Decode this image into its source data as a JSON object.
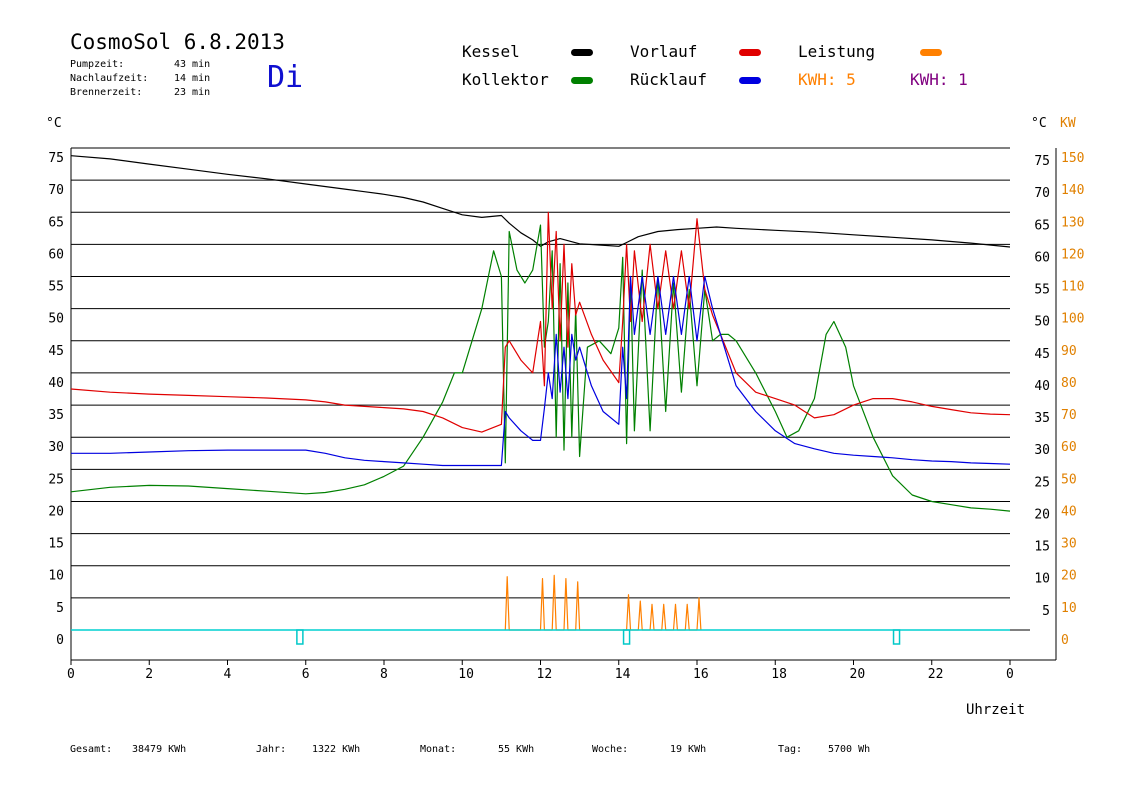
{
  "header": {
    "title": "CosmoSol 6.8.2013",
    "day": "Di",
    "stats": [
      {
        "label": "Pumpzeit:",
        "value": "43 min"
      },
      {
        "label": "Nachlaufzeit:",
        "value": "14 min"
      },
      {
        "label": "Brennerzeit:",
        "value": "23 min"
      }
    ]
  },
  "legend": {
    "kessel": {
      "label": "Kessel",
      "color": "#000000"
    },
    "kollektor": {
      "label": "Kollektor",
      "color": "#008000"
    },
    "vorlauf": {
      "label": "Vorlauf",
      "color": "#e00000"
    },
    "ruecklauf": {
      "label": "Rücklauf",
      "color": "#0000e0"
    },
    "leistung": {
      "label": "Leistung",
      "color": "#ff8000"
    },
    "kwh_orange": {
      "label": "KWH:",
      "value": "5",
      "color": "#ff8000"
    },
    "kwh_purple": {
      "label": "KWH:",
      "value": "1",
      "color": "#800080"
    }
  },
  "axes": {
    "left_unit": "°C",
    "right_unit_c": "°C",
    "right_unit_kw": "KW",
    "x_label": "Uhrzeit"
  },
  "footer": {
    "gesamt_label": "Gesamt:",
    "gesamt_value": "38479 KWh",
    "jahr_label": "Jahr:",
    "jahr_value": "1322 KWh",
    "monat_label": "Monat:",
    "monat_value": "55 KWh",
    "woche_label": "Woche:",
    "woche_value": "19 KWh",
    "tag_label": "Tag:",
    "tag_value": "5700 Wh"
  },
  "chart_data": {
    "type": "line",
    "x_unit": "hours",
    "xlim": [
      0,
      24
    ],
    "x_ticks": [
      "0",
      "2",
      "4",
      "6",
      "8",
      "10",
      "12",
      "14",
      "16",
      "18",
      "20",
      "22",
      "0"
    ],
    "ylim": [
      0,
      75
    ],
    "y_ticks_left": [
      "0",
      "5",
      "10",
      "15",
      "20",
      "25",
      "30",
      "35",
      "40",
      "45",
      "50",
      "55",
      "60",
      "65",
      "70",
      "75"
    ],
    "y_ticks_right_c": [
      "5",
      "10",
      "15",
      "20",
      "25",
      "30",
      "35",
      "40",
      "45",
      "50",
      "55",
      "60",
      "65",
      "70",
      "75"
    ],
    "y_ticks_right_kw": [
      "0",
      "10",
      "20",
      "30",
      "40",
      "50",
      "60",
      "70",
      "80",
      "90",
      "100",
      "110",
      "120",
      "130",
      "140",
      "150"
    ],
    "grid": true,
    "series": [
      {
        "name": "Kessel",
        "color": "#000000",
        "x": [
          0,
          1,
          2,
          3,
          4,
          5,
          6,
          7,
          7.5,
          8,
          8.5,
          9,
          9.5,
          10,
          10.5,
          11,
          11.2,
          11.5,
          11.8,
          12,
          12.2,
          12.5,
          13,
          13.5,
          14,
          14.2,
          14.5,
          15,
          15.5,
          16,
          16.5,
          17,
          18,
          19,
          20,
          21,
          22,
          23,
          24
        ],
        "y": [
          73.8,
          73.3,
          72.5,
          71.7,
          70.9,
          70.2,
          69.4,
          68.6,
          68.2,
          67.8,
          67.3,
          66.6,
          65.6,
          64.6,
          64.2,
          64.5,
          63.3,
          61.8,
          60.7,
          59.7,
          60.4,
          60.9,
          60.1,
          59.9,
          59.7,
          60.3,
          61.2,
          62.0,
          62.3,
          62.5,
          62.7,
          62.5,
          62.2,
          61.9,
          61.5,
          61.1,
          60.7,
          60.2,
          59.6
        ]
      },
      {
        "name": "Kollektor",
        "color": "#008000",
        "x": [
          0,
          1,
          2,
          3,
          4,
          5,
          6,
          6.5,
          7,
          7.5,
          8,
          8.5,
          9,
          9.5,
          9.8,
          10,
          10.5,
          10.8,
          11,
          11.1,
          11.2,
          11.4,
          11.6,
          11.8,
          12,
          12.1,
          12.2,
          12.3,
          12.4,
          12.5,
          12.6,
          12.7,
          12.8,
          12.9,
          13,
          13.2,
          13.5,
          13.8,
          14,
          14.1,
          14.2,
          14.3,
          14.4,
          14.6,
          14.8,
          15,
          15.2,
          15.4,
          15.6,
          15.8,
          16,
          16.2,
          16.4,
          16.6,
          16.8,
          17,
          17.5,
          18,
          18.3,
          18.6,
          19,
          19.3,
          19.5,
          19.8,
          20,
          20.5,
          21,
          21.5,
          22,
          22.5,
          23,
          23.5,
          24
        ],
        "y": [
          21.5,
          22.2,
          22.5,
          22.4,
          22.0,
          21.6,
          21.2,
          21.4,
          21.9,
          22.6,
          23.9,
          25.5,
          30.0,
          35.5,
          40.0,
          40.0,
          50.0,
          59.0,
          55.0,
          26.0,
          62.0,
          56.0,
          54.0,
          56.0,
          63.0,
          44.0,
          48.0,
          59.0,
          30.0,
          57.0,
          28.0,
          54.0,
          30.0,
          50.0,
          27.0,
          44.0,
          45.0,
          43.0,
          47.0,
          58.0,
          29.0,
          55.0,
          31.0,
          56.0,
          31.0,
          55.0,
          34.0,
          54.0,
          37.0,
          53.0,
          38.0,
          53.0,
          45.0,
          46.0,
          46.0,
          45.0,
          40.0,
          34.0,
          30.0,
          31.0,
          36.0,
          46.0,
          48.0,
          44.0,
          38.0,
          30.0,
          24.0,
          21.0,
          20.0,
          19.5,
          19.0,
          18.8,
          18.5
        ]
      },
      {
        "name": "Vorlauf",
        "color": "#e00000",
        "x": [
          0,
          1,
          2,
          3,
          4,
          5,
          6,
          6.5,
          7,
          7.5,
          8,
          8.5,
          9,
          9.5,
          10,
          10.5,
          11,
          11.1,
          11.2,
          11.5,
          11.8,
          12,
          12.1,
          12.2,
          12.3,
          12.4,
          12.5,
          12.6,
          12.7,
          12.8,
          12.9,
          13,
          13.3,
          13.6,
          14,
          14.1,
          14.2,
          14.3,
          14.4,
          14.6,
          14.8,
          15,
          15.2,
          15.4,
          15.6,
          15.8,
          16,
          16.2,
          16.4,
          16.6,
          17,
          17.5,
          18,
          18.5,
          19,
          19.5,
          20,
          20.5,
          21,
          21.5,
          22,
          22.5,
          23,
          23.5,
          24
        ],
        "y": [
          37.5,
          37.0,
          36.7,
          36.5,
          36.3,
          36.1,
          35.8,
          35.5,
          35.0,
          34.8,
          34.6,
          34.4,
          34.0,
          33.0,
          31.5,
          30.8,
          32.0,
          44.0,
          45.0,
          42.0,
          40.0,
          48.0,
          38.0,
          65.0,
          50.0,
          62.0,
          45.0,
          60.0,
          44.0,
          57.0,
          49.0,
          51.0,
          46.0,
          42.0,
          38.5,
          48.0,
          60.0,
          48.0,
          59.0,
          48.0,
          60.0,
          50.0,
          59.0,
          50.0,
          59.0,
          50.0,
          64.0,
          53.0,
          49.0,
          46.0,
          40.0,
          37.0,
          36.0,
          35.0,
          33.0,
          33.5,
          35.0,
          36.0,
          36.0,
          35.5,
          34.8,
          34.3,
          33.8,
          33.6,
          33.5
        ]
      },
      {
        "name": "Rücklauf",
        "color": "#0000e0",
        "x": [
          0,
          1,
          2,
          3,
          4,
          5,
          6,
          6.5,
          7,
          7.5,
          8,
          8.5,
          9,
          9.5,
          10,
          10.5,
          11,
          11.1,
          11.2,
          11.5,
          11.8,
          12,
          12.1,
          12.2,
          12.3,
          12.4,
          12.5,
          12.6,
          12.7,
          12.8,
          12.9,
          13,
          13.3,
          13.6,
          14,
          14.1,
          14.2,
          14.3,
          14.4,
          14.6,
          14.8,
          15,
          15.2,
          15.4,
          15.6,
          15.8,
          16,
          16.2,
          16.4,
          16.6,
          17,
          17.5,
          18,
          18.5,
          19,
          19.5,
          20,
          20.5,
          21,
          21.5,
          22,
          22.5,
          23,
          23.5,
          24
        ],
        "y": [
          27.5,
          27.5,
          27.7,
          27.9,
          28.0,
          28.0,
          28.0,
          27.5,
          26.8,
          26.4,
          26.2,
          26.0,
          25.8,
          25.6,
          25.6,
          25.6,
          25.6,
          34.0,
          33.0,
          31.0,
          29.5,
          29.5,
          34.5,
          40.0,
          36.0,
          46.0,
          37.0,
          44.0,
          36.0,
          46.0,
          42.0,
          44.0,
          38.0,
          34.0,
          32.0,
          44.0,
          36.0,
          55.0,
          46.0,
          55.0,
          46.0,
          55.0,
          46.0,
          55.0,
          46.0,
          55.0,
          45.0,
          55.0,
          50.0,
          46.0,
          38.0,
          34.0,
          31.0,
          29.0,
          28.2,
          27.5,
          27.2,
          27.0,
          26.8,
          26.5,
          26.3,
          26.2,
          26.0,
          25.9,
          25.8
        ]
      },
      {
        "name": "Leistung",
        "color": "#ff8000",
        "x": [
          11.1,
          11.15,
          11.2,
          12.0,
          12.05,
          12.1,
          12.3,
          12.35,
          12.4,
          12.6,
          12.65,
          12.7,
          12.9,
          12.95,
          13.0,
          14.2,
          14.25,
          14.3,
          14.5,
          14.55,
          14.6,
          14.8,
          14.85,
          14.9,
          15.1,
          15.15,
          15.2,
          15.4,
          15.45,
          15.5,
          15.7,
          15.75,
          15.8,
          16.0,
          16.05,
          16.1
        ],
        "y": [
          0,
          8.3,
          0,
          0,
          8.0,
          0,
          0,
          8.5,
          0,
          0,
          8.0,
          0,
          0,
          7.5,
          0,
          0,
          5.5,
          0,
          0,
          4.5,
          0,
          0,
          4.0,
          0,
          0,
          4.0,
          0,
          0,
          4.0,
          0,
          0,
          4.0,
          0,
          0,
          5.0,
          0
        ]
      },
      {
        "name": "Brenner",
        "color": "#00d0d0",
        "x": [
          0,
          24
        ],
        "y": [
          0,
          0
        ]
      }
    ],
    "brenner_marks_x": [
      5.85,
      14.2,
      21.1
    ]
  }
}
